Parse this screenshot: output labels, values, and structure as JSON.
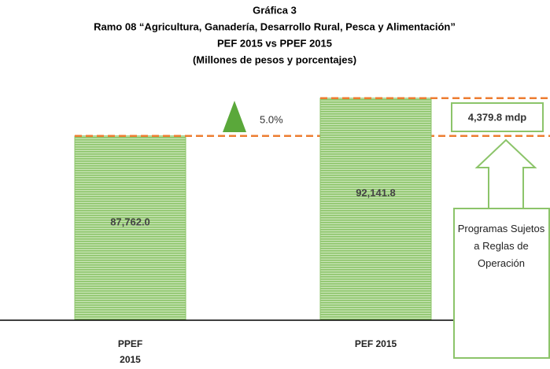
{
  "chart_data": {
    "type": "bar",
    "title": "Gráfica 3",
    "subtitle": [
      "Ramo 08 “Agricultura, Ganadería, Desarrollo Rural, Pesca y Alimentación”",
      "PEF 2015 vs PPEF 2015",
      "(Millones de pesos y porcentajes)"
    ],
    "categories": [
      "PPEF 2015",
      "PEF 2015"
    ],
    "values": [
      87762.0,
      92141.8
    ],
    "value_labels": [
      "87,762.0",
      "92,141.8"
    ],
    "color": "#8cc46a",
    "ylim": [
      66400,
      94400
    ],
    "annotations": {
      "change": "5.0%",
      "difference": "4,379.8 mdp",
      "note": "Programas Sujetos a Reglas de Operación"
    }
  }
}
